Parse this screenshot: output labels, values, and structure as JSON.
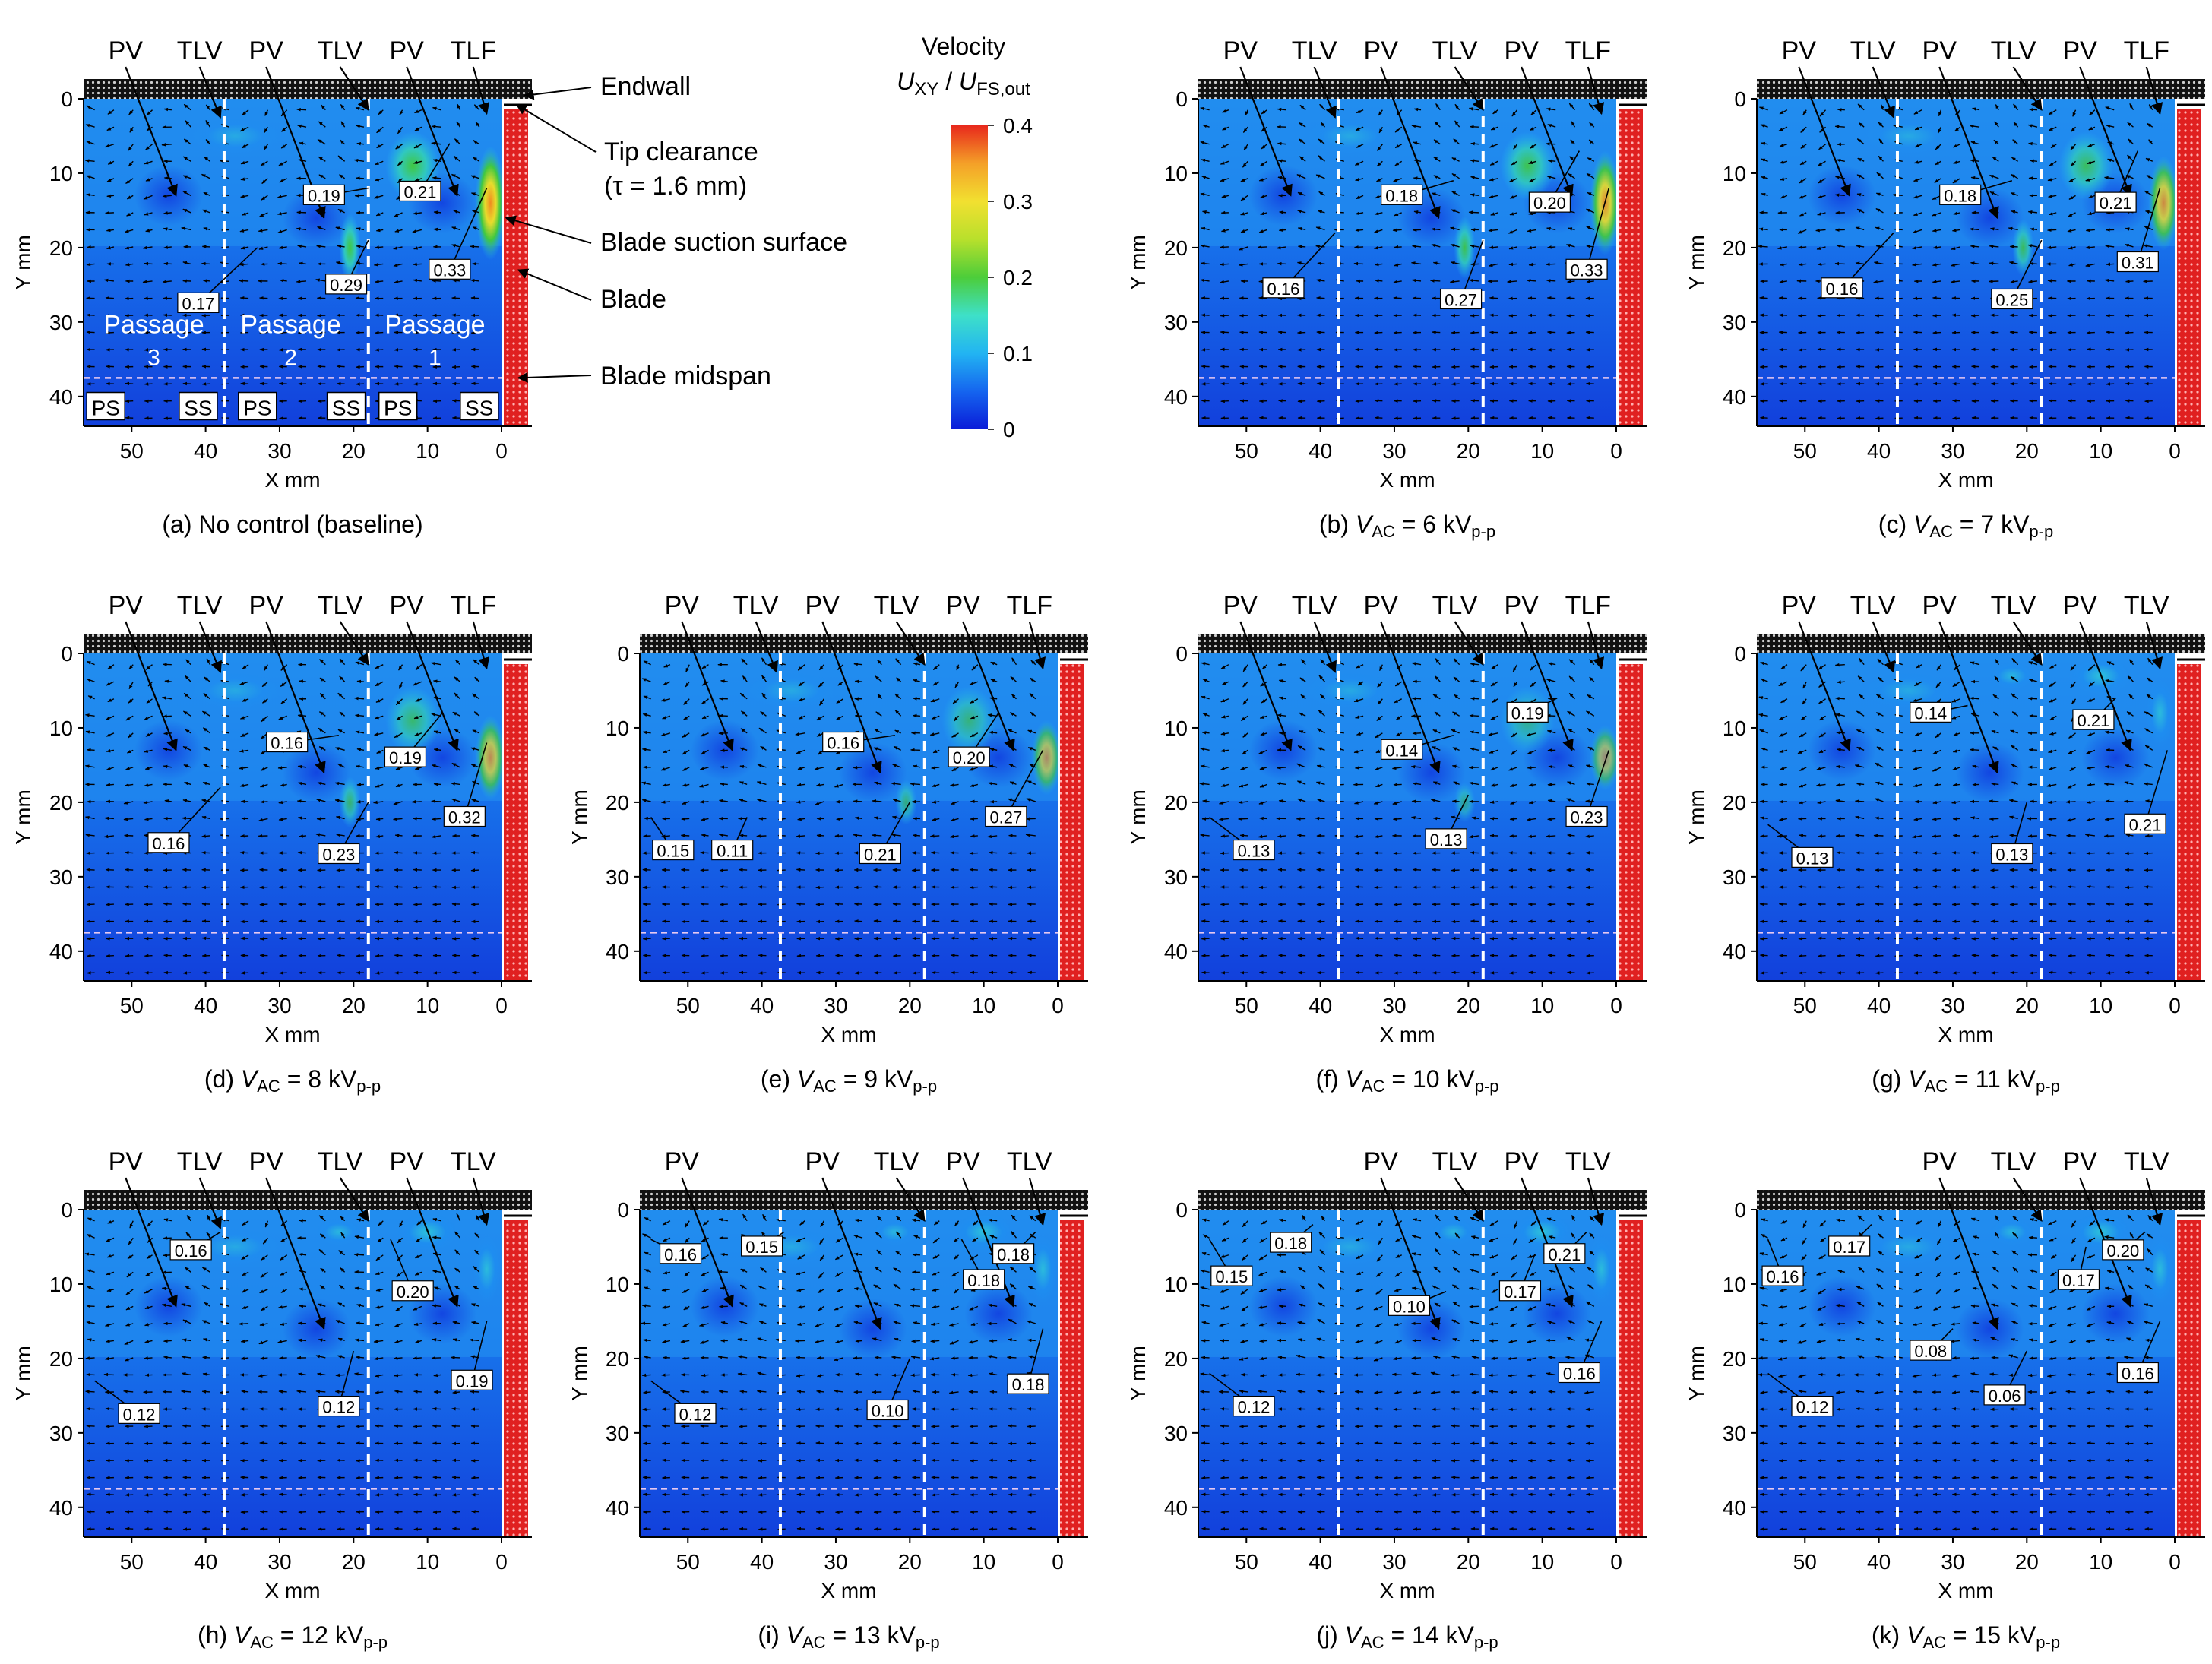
{
  "axes": {
    "x_label": "X mm",
    "y_label": "Y mm",
    "x_ticks": [
      "50",
      "40",
      "30",
      "20",
      "10",
      "0"
    ],
    "y_ticks": [
      "0",
      "10",
      "20",
      "30",
      "40"
    ]
  },
  "colorbar": {
    "title": "Velocity",
    "quantity_html": "<tspan font-style=\"italic\">U</tspan><tspan font-size=\"24\" dy=\"7\">XY</tspan><tspan dy=\"-7\"> / </tspan><tspan font-style=\"italic\">U</tspan><tspan font-size=\"24\" dy=\"7\">FS,out</tspan>",
    "ticks": [
      "0.4",
      "0.3",
      "0.2",
      "0.1",
      "0"
    ],
    "colors": [
      "#0a1cd8",
      "#1565ef",
      "#22b4f2",
      "#3ee0c8",
      "#4ccd3a",
      "#b8e02c",
      "#f2e030",
      "#f4a028",
      "#e8281c"
    ]
  },
  "annotations_a": {
    "endwall": "Endwall",
    "tip_clearance": "Tip clearance",
    "tau": "(τ = 1.6 mm)",
    "suction": "Blade suction surface",
    "blade": "Blade",
    "midspan": "Blade midspan",
    "passage_word": "Passage",
    "passage_nums": [
      "3",
      "2",
      "1"
    ],
    "side_labels": [
      "PS",
      "SS",
      "PS",
      "SS",
      "PS",
      "SS"
    ]
  },
  "panels": [
    {
      "caption": "(a) No control (baseline)",
      "vac": "",
      "vortex_labels": [
        "PV",
        "TLV",
        "PV",
        "TLV",
        "PV",
        "TLF"
      ],
      "values": [
        {
          "v": "0.17",
          "x": 41,
          "y": 27.5,
          "tx": 33,
          "ty": 20
        },
        {
          "v": "0.19",
          "x": 24,
          "y": 13,
          "tx": 18,
          "ty": 12
        },
        {
          "v": "0.29",
          "x": 21,
          "y": 25,
          "tx": 18,
          "ty": 19
        },
        {
          "v": "0.21",
          "x": 11,
          "y": 12.5,
          "tx": 7,
          "ty": 6
        },
        {
          "v": "0.33",
          "x": 7,
          "y": 23,
          "tx": 2,
          "ty": 12
        }
      ]
    },
    {
      "caption": "(b) ",
      "vac": "6",
      "vortex_labels": [
        "PV",
        "TLV",
        "PV",
        "TLV",
        "PV",
        "TLF"
      ],
      "values": [
        {
          "v": "0.16",
          "x": 45,
          "y": 25.5,
          "tx": 38,
          "ty": 18
        },
        {
          "v": "0.18",
          "x": 29,
          "y": 13,
          "tx": 22,
          "ty": 11
        },
        {
          "v": "0.27",
          "x": 21,
          "y": 27,
          "tx": 18,
          "ty": 19
        },
        {
          "v": "0.20",
          "x": 9,
          "y": 14,
          "tx": 5,
          "ty": 7
        },
        {
          "v": "0.33",
          "x": 4,
          "y": 23,
          "tx": 1,
          "ty": 12
        }
      ]
    },
    {
      "caption": "(c) ",
      "vac": "7",
      "vortex_labels": [
        "PV",
        "TLV",
        "PV",
        "TLV",
        "PV",
        "TLF"
      ],
      "values": [
        {
          "v": "0.16",
          "x": 45,
          "y": 25.5,
          "tx": 38,
          "ty": 18
        },
        {
          "v": "0.18",
          "x": 29,
          "y": 13,
          "tx": 22,
          "ty": 11
        },
        {
          "v": "0.25",
          "x": 22,
          "y": 27,
          "tx": 18,
          "ty": 19
        },
        {
          "v": "0.21",
          "x": 8,
          "y": 14,
          "tx": 5,
          "ty": 7
        },
        {
          "v": "0.31",
          "x": 5,
          "y": 22,
          "tx": 2,
          "ty": 12
        }
      ]
    },
    {
      "caption": "(d) ",
      "vac": "8",
      "vortex_labels": [
        "PV",
        "TLV",
        "PV",
        "TLV",
        "PV",
        "TLF"
      ],
      "values": [
        {
          "v": "0.16",
          "x": 45,
          "y": 25.5,
          "tx": 38,
          "ty": 18
        },
        {
          "v": "0.16",
          "x": 29,
          "y": 12,
          "tx": 22,
          "ty": 11
        },
        {
          "v": "0.23",
          "x": 22,
          "y": 27,
          "tx": 18,
          "ty": 20
        },
        {
          "v": "0.19",
          "x": 13,
          "y": 14,
          "tx": 8,
          "ty": 8
        },
        {
          "v": "0.32",
          "x": 5,
          "y": 22,
          "tx": 2,
          "ty": 12
        }
      ]
    },
    {
      "caption": "(e) ",
      "vac": "9",
      "vortex_labels": [
        "PV",
        "TLV",
        "PV",
        "TLV",
        "PV",
        "TLF"
      ],
      "values": [
        {
          "v": "0.15",
          "x": 52,
          "y": 26.5,
          "tx": 55,
          "ty": 22
        },
        {
          "v": "0.11",
          "x": 44,
          "y": 26.5,
          "tx": 42,
          "ty": 22
        },
        {
          "v": "0.16",
          "x": 29,
          "y": 12,
          "tx": 22,
          "ty": 11
        },
        {
          "v": "0.21",
          "x": 24,
          "y": 27,
          "tx": 20,
          "ty": 20
        },
        {
          "v": "0.20",
          "x": 12,
          "y": 14,
          "tx": 8,
          "ty": 8
        },
        {
          "v": "0.27",
          "x": 7,
          "y": 22,
          "tx": 2,
          "ty": 13
        }
      ]
    },
    {
      "caption": "(f) ",
      "vac": "10",
      "vortex_labels": [
        "PV",
        "TLV",
        "PV",
        "TLV",
        "PV",
        "TLF"
      ],
      "values": [
        {
          "v": "0.13",
          "x": 49,
          "y": 26.5,
          "tx": 55,
          "ty": 22
        },
        {
          "v": "0.14",
          "x": 29,
          "y": 13,
          "tx": 22,
          "ty": 11
        },
        {
          "v": "0.13",
          "x": 23,
          "y": 25,
          "tx": 20,
          "ty": 19
        },
        {
          "v": "0.19",
          "x": 12,
          "y": 8,
          "tx": 8,
          "ty": 6
        },
        {
          "v": "0.23",
          "x": 4,
          "y": 22,
          "tx": 1,
          "ty": 13
        }
      ]
    },
    {
      "caption": "(g) ",
      "vac": "11",
      "vortex_labels": [
        "PV",
        "TLV",
        "PV",
        "TLV",
        "PV",
        "TLV"
      ],
      "values": [
        {
          "v": "0.13",
          "x": 49,
          "y": 27.5,
          "tx": 55,
          "ty": 23
        },
        {
          "v": "0.14",
          "x": 33,
          "y": 8,
          "tx": 28,
          "ty": 7
        },
        {
          "v": "0.13",
          "x": 22,
          "y": 27,
          "tx": 20,
          "ty": 20
        },
        {
          "v": "0.21",
          "x": 11,
          "y": 9,
          "tx": 8,
          "ty": 6
        },
        {
          "v": "0.21",
          "x": 4,
          "y": 23,
          "tx": 1,
          "ty": 13
        }
      ]
    },
    {
      "caption": "(h) ",
      "vac": "12",
      "vortex_labels": [
        "PV",
        "TLV",
        "PV",
        "TLV",
        "PV",
        "TLV"
      ],
      "values": [
        {
          "v": "0.16",
          "x": 42,
          "y": 5.5,
          "tx": 38,
          "ty": 3
        },
        {
          "v": "0.12",
          "x": 49,
          "y": 27.5,
          "tx": 55,
          "ty": 23
        },
        {
          "v": "0.12",
          "x": 22,
          "y": 26.5,
          "tx": 20,
          "ty": 19
        },
        {
          "v": "0.20",
          "x": 12,
          "y": 11,
          "tx": 15,
          "ty": 4
        },
        {
          "v": "0.19",
          "x": 4,
          "y": 23,
          "tx": 2,
          "ty": 15
        }
      ]
    },
    {
      "caption": "(i) ",
      "vac": "13",
      "vortex_labels": [
        "PV",
        "",
        "PV",
        "TLV",
        "PV",
        "TLV"
      ],
      "values": [
        {
          "v": "0.16",
          "x": 51,
          "y": 6,
          "tx": 55,
          "ty": 4
        },
        {
          "v": "0.15",
          "x": 40,
          "y": 5,
          "tx": 37,
          "ty": 3
        },
        {
          "v": "0.12",
          "x": 49,
          "y": 27.5,
          "tx": 55,
          "ty": 23
        },
        {
          "v": "0.10",
          "x": 23,
          "y": 27,
          "tx": 20,
          "ty": 20
        },
        {
          "v": "0.18",
          "x": 10,
          "y": 9.5,
          "tx": 13,
          "ty": 4
        },
        {
          "v": "0.18",
          "x": 6,
          "y": 6,
          "tx": 3,
          "ty": 3
        },
        {
          "v": "0.18",
          "x": 4,
          "y": 23.5,
          "tx": 2,
          "ty": 16
        }
      ]
    },
    {
      "caption": "(j) ",
      "vac": "14",
      "vortex_labels": [
        "",
        "",
        "PV",
        "TLV",
        "PV",
        "TLV"
      ],
      "values": [
        {
          "v": "0.15",
          "x": 52,
          "y": 9,
          "tx": 55,
          "ty": 4
        },
        {
          "v": "0.18",
          "x": 44,
          "y": 4.5,
          "tx": 41,
          "ty": 2
        },
        {
          "v": "0.12",
          "x": 49,
          "y": 26.5,
          "tx": 55,
          "ty": 22
        },
        {
          "v": "0.10",
          "x": 28,
          "y": 13,
          "tx": 23,
          "ty": 11
        },
        {
          "v": "0.17",
          "x": 13,
          "y": 11,
          "tx": 11,
          "ty": 6
        },
        {
          "v": "0.21",
          "x": 7,
          "y": 6,
          "tx": 4,
          "ty": 3
        },
        {
          "v": "0.16",
          "x": 5,
          "y": 22,
          "tx": 2,
          "ty": 15
        }
      ]
    },
    {
      "caption": "(k) ",
      "vac": "15",
      "vortex_labels": [
        "",
        "",
        "PV",
        "TLV",
        "PV",
        "TLV"
      ],
      "values": [
        {
          "v": "0.16",
          "x": 53,
          "y": 9,
          "tx": 55,
          "ty": 4
        },
        {
          "v": "0.17",
          "x": 44,
          "y": 5,
          "tx": 41,
          "ty": 2
        },
        {
          "v": "0.12",
          "x": 49,
          "y": 26.5,
          "tx": 55,
          "ty": 22
        },
        {
          "v": "0.08",
          "x": 33,
          "y": 19,
          "tx": 30,
          "ty": 16
        },
        {
          "v": "0.06",
          "x": 23,
          "y": 25,
          "tx": 20,
          "ty": 19
        },
        {
          "v": "0.17",
          "x": 13,
          "y": 9.5,
          "tx": 12,
          "ty": 5
        },
        {
          "v": "0.20",
          "x": 7,
          "y": 5.5,
          "tx": 4,
          "ty": 3
        },
        {
          "v": "0.16",
          "x": 5,
          "y": 22,
          "tx": 2,
          "ty": 15
        }
      ]
    }
  ]
}
